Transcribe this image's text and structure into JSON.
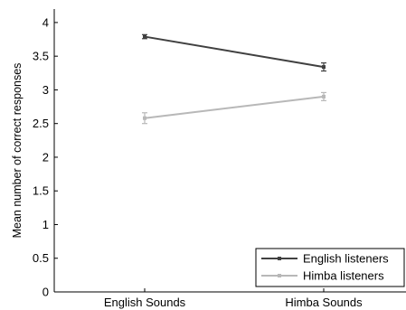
{
  "chart_data": {
    "type": "line",
    "title": "",
    "xlabel": "",
    "ylabel": "Mean number of correct responses",
    "categories": [
      "English Sounds",
      "Himba Sounds"
    ],
    "ylim": [
      0,
      4.2
    ],
    "yticks": [
      "0",
      "0.5",
      "1",
      "1.5",
      "2",
      "2.5",
      "3",
      "3.5",
      "4"
    ],
    "ytick_values": [
      0,
      0.5,
      1,
      1.5,
      2,
      2.5,
      3,
      3.5,
      4
    ],
    "grid": false,
    "legend_position": "bottom-right",
    "series": [
      {
        "name": "English listeners",
        "values": [
          3.79,
          3.34
        ],
        "errors": [
          0.03,
          0.06
        ],
        "color": "#404040"
      },
      {
        "name": "Himba listeners",
        "values": [
          2.58,
          2.9
        ],
        "errors": [
          0.08,
          0.06
        ],
        "color": "#b8b8b8"
      }
    ]
  }
}
